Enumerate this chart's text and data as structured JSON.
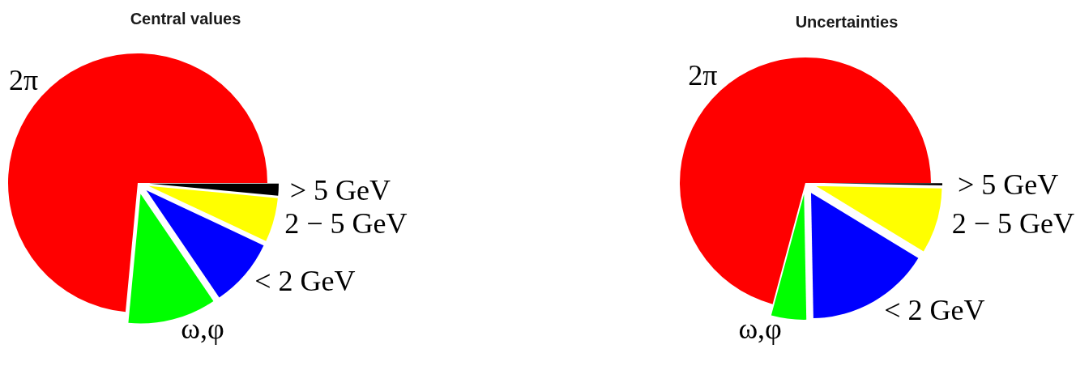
{
  "chart_data": [
    {
      "type": "pie",
      "title": "Central values",
      "categories": [
        "2π",
        "ω,φ",
        "< 2 GeV",
        "2 − 5 GeV",
        "> 5 GeV"
      ],
      "values": [
        73.5,
        11,
        8.5,
        5.5,
        1.5
      ],
      "colors": [
        "#ff0000",
        "#00ff00",
        "#0000ff",
        "#ffff00",
        "#000000"
      ]
    },
    {
      "type": "pie",
      "title": "Uncertainties",
      "categories": [
        "2π",
        "ω,φ",
        "< 2 GeV",
        "2 − 5 GeV",
        "> 5 GeV"
      ],
      "values": [
        70.8,
        4.5,
        16,
        8.4,
        0.3
      ],
      "colors": [
        "#ff0000",
        "#00ff00",
        "#0000ff",
        "#ffff00",
        "#000000"
      ]
    }
  ]
}
